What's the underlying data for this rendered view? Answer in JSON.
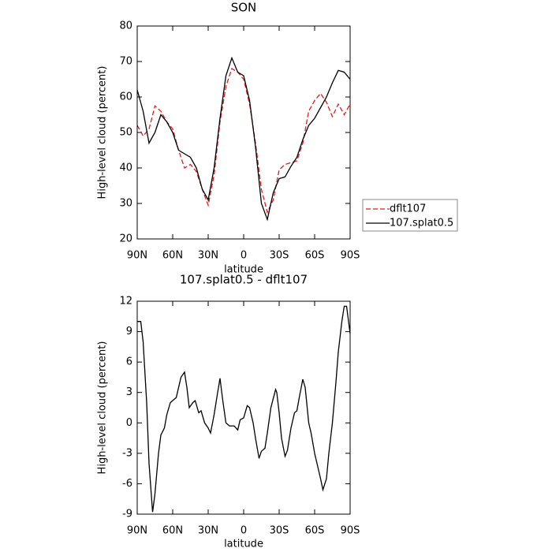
{
  "chart_data": [
    {
      "type": "line",
      "title": "SON",
      "xlabel": "latitude",
      "ylabel": "High-level cloud (percent)",
      "x": [
        90,
        85,
        80,
        75,
        70,
        65,
        60,
        55,
        50,
        45,
        40,
        35,
        30,
        25,
        20,
        15,
        10,
        5,
        0,
        -5,
        -10,
        -15,
        -20,
        -25,
        -30,
        -35,
        -40,
        -45,
        -50,
        -55,
        -60,
        -65,
        -70,
        -75,
        -80,
        -85,
        -90
      ],
      "series": [
        {
          "name": "dflt107",
          "color": "#e41a1c",
          "dashed": true,
          "values": [
            52,
            49,
            51,
            57.5,
            56,
            53,
            51,
            45,
            40,
            41,
            39,
            34,
            29.5,
            38,
            53,
            63,
            68,
            67,
            65,
            58,
            47,
            34,
            27.5,
            31,
            39.5,
            41,
            41.5,
            42,
            47,
            56,
            59,
            61,
            58.5,
            54.5,
            58,
            55,
            58
          ]
        },
        {
          "name": "107.splat0.5",
          "color": "#000000",
          "dashed": false,
          "values": [
            62,
            56,
            47,
            50,
            55,
            53,
            50,
            45,
            44,
            43,
            40,
            34,
            31,
            40,
            54,
            66,
            71,
            67,
            66,
            59,
            46,
            30,
            25.5,
            33,
            37,
            37.5,
            40.5,
            43,
            48,
            52,
            54,
            57,
            60,
            64,
            67.5,
            67,
            65
          ]
        }
      ],
      "xlim": [
        90,
        -90
      ],
      "xticks": [
        {
          "value": 90,
          "label": "90N"
        },
        {
          "value": 60,
          "label": "60N"
        },
        {
          "value": 30,
          "label": "30N"
        },
        0,
        {
          "value": -30,
          "label": "30S"
        },
        {
          "value": -60,
          "label": "60S"
        },
        {
          "value": -90,
          "label": "90S"
        }
      ],
      "ylim": [
        20,
        80
      ],
      "yticks": [
        20,
        30,
        40,
        50,
        60,
        70,
        80
      ],
      "legend": "right"
    },
    {
      "type": "line",
      "title": "107.splat0.5 - dflt107",
      "xlabel": "latitude",
      "ylabel": "High-level cloud (percent)",
      "x": [
        90,
        87,
        85,
        82,
        80,
        77,
        75,
        72,
        70,
        67,
        65,
        62,
        60,
        57,
        55,
        53,
        50,
        48,
        46,
        43,
        41,
        38,
        36,
        33,
        30,
        28,
        25,
        22,
        20,
        18,
        15,
        12,
        8,
        5,
        3,
        0,
        -3,
        -5,
        -8,
        -10,
        -13,
        -15,
        -18,
        -20,
        -23,
        -27,
        -28,
        -30,
        -32,
        -35,
        -37,
        -40,
        -43,
        -45,
        -47,
        -50,
        -52,
        -55,
        -57,
        -60,
        -63,
        -65,
        -67,
        -70,
        -72,
        -75,
        -78,
        -80,
        -83,
        -85,
        -87,
        -90
      ],
      "series": [
        {
          "name": "107.splat0.5 - dflt107",
          "color": "#000000",
          "dashed": false,
          "values": [
            10,
            10,
            8,
            2,
            -4,
            -8.8,
            -7,
            -3,
            -1.2,
            -0.5,
            0.8,
            2,
            2.2,
            2.5,
            3.5,
            4.5,
            5,
            3.5,
            1.5,
            2,
            2.2,
            1,
            1.2,
            0,
            -0.5,
            -1,
            0.8,
            3,
            4.4,
            2.5,
            0,
            -0.3,
            -0.3,
            -0.7,
            0.3,
            0.5,
            1.7,
            1.5,
            0,
            -1.5,
            -3.5,
            -2.8,
            -2.5,
            -1,
            1.5,
            3.3,
            3,
            1,
            -1.5,
            -3.3,
            -2.7,
            -0.5,
            1,
            1.2,
            2.5,
            4.3,
            3.5,
            0,
            -1,
            -3,
            -4.5,
            -5.5,
            -6.6,
            -5.5,
            -3,
            0,
            4,
            7,
            10,
            11.5,
            11.5,
            8.8
          ]
        }
      ],
      "xlim": [
        90,
        -90
      ],
      "xticks": [
        {
          "value": 90,
          "label": "90N"
        },
        {
          "value": 60,
          "label": "60N"
        },
        {
          "value": 30,
          "label": "30N"
        },
        0,
        {
          "value": -30,
          "label": "30S"
        },
        {
          "value": -60,
          "label": "60S"
        },
        {
          "value": -90,
          "label": "90S"
        }
      ],
      "ylim": [
        -9,
        12
      ],
      "yticks": [
        -9,
        -6,
        -3,
        0,
        3,
        6,
        9,
        12
      ]
    }
  ]
}
